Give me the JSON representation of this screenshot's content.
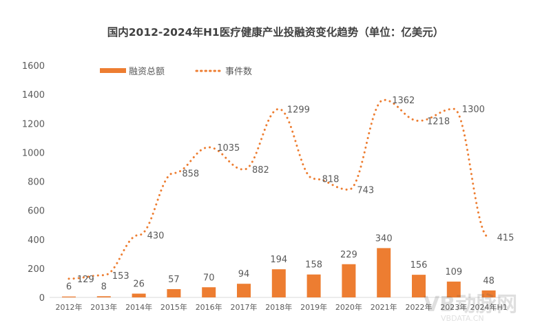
{
  "chart_data": {
    "type": "bar+line",
    "title": "国内2012-2024年H1医疗健康产业投融资变化趋势（单位：亿美元）",
    "categories": [
      "2012年",
      "2013年",
      "2014年",
      "2015年",
      "2016年",
      "2017年",
      "2018年",
      "2019年",
      "2020年",
      "2021年",
      "2022年",
      "2023年",
      "2024年H1"
    ],
    "series": [
      {
        "name": "融资总额",
        "type": "bar",
        "color": "#ED7D31",
        "values": [
          6,
          8,
          26,
          57,
          70,
          94,
          194,
          158,
          229,
          340,
          156,
          109,
          48
        ]
      },
      {
        "name": "事件数",
        "type": "line-dotted",
        "color": "#ED7D31",
        "values": [
          129,
          153,
          430,
          858,
          1035,
          882,
          1299,
          818,
          743,
          1362,
          1218,
          1300,
          415
        ]
      }
    ],
    "yticks": [
      "0",
      "200",
      "400",
      "600",
      "800",
      "1000",
      "1200",
      "1400",
      "1600"
    ],
    "ylim": [
      0,
      1600
    ],
    "grid": false,
    "legend": "top-left",
    "watermark": {
      "logo": "VB动脉网",
      "url": "VBDATA.CN"
    }
  }
}
